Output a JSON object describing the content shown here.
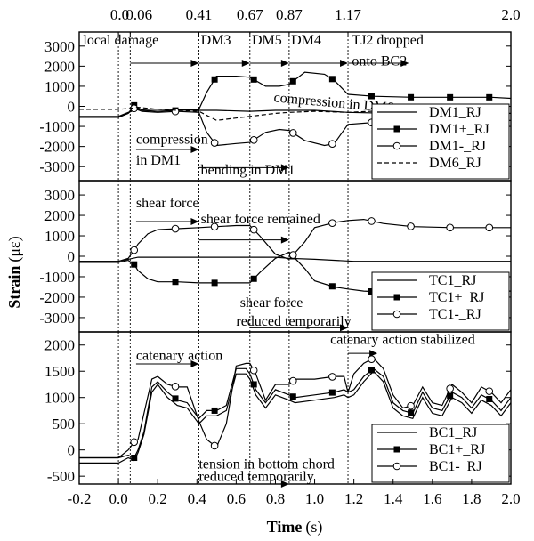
{
  "chart_data": {
    "type": "line",
    "xlabel": "Time",
    "xunit": "(s)",
    "ylabel": "Strain",
    "yunit": "(με)",
    "xlim": [
      -0.2,
      2.0
    ],
    "xticks": [
      "-0.2",
      "0.0",
      "0.2",
      "0.4",
      "0.6",
      "0.8",
      "1.0",
      "1.2",
      "1.4",
      "1.6",
      "1.8",
      "2.0"
    ],
    "top_ticks": [
      {
        "x": 0.0,
        "label": "0.0"
      },
      {
        "x": 0.06,
        "label": "0.06"
      },
      {
        "x": 0.41,
        "label": "0.41"
      },
      {
        "x": 0.67,
        "label": "0.67"
      },
      {
        "x": 0.87,
        "label": "0.87"
      },
      {
        "x": 1.17,
        "label": "1.17"
      },
      {
        "x": 2.0,
        "label": "2.0"
      }
    ],
    "grid": false,
    "panels": [
      {
        "ylim": [
          -3700,
          3700
        ],
        "yticks": [
          3000,
          2000,
          1000,
          0,
          -1000,
          -2000,
          -3000
        ],
        "legend_position": "lower-right",
        "annotations": [
          {
            "text": "local damage",
            "x": -0.18,
            "y": 3080,
            "arrow": [
              0.06,
              0.41,
              2150
            ]
          },
          {
            "text": "DM3",
            "x": 0.42,
            "y": 3080,
            "arrow": [
              0.41,
              0.67,
              2150
            ]
          },
          {
            "text": "DM5",
            "x": 0.68,
            "y": 3080,
            "arrow": [
              0.67,
              0.87,
              2150
            ]
          },
          {
            "text": "DM4",
            "x": 0.88,
            "y": 3080,
            "arrow": [
              0.87,
              1.17,
              2150
            ]
          },
          {
            "text": "TJ2 dropped",
            "x": 1.19,
            "y": 3080,
            "arrow": [
              1.17,
              1.48,
              2150
            ]
          },
          {
            "text": "onto BC2",
            "x": 1.19,
            "y": 2030
          },
          {
            "text": "compression in DM6",
            "x": 0.79,
            "y": 230,
            "rotate": 5
          },
          {
            "text": "compression",
            "x": 0.09,
            "y": -1870
          },
          {
            "text": "in DM1",
            "x": 0.09,
            "y": -2900,
            "arrow": [
              0.09,
              0.41,
              -2150
            ]
          },
          {
            "text": "bending in DM1",
            "x": 0.42,
            "y": -3400,
            "arrow": [
              0.41,
              0.87,
              -3050
            ]
          }
        ],
        "series": [
          {
            "name": "DM1_RJ",
            "style": "solid",
            "marker": "none",
            "x": [
              -0.2,
              0.0,
              0.05,
              0.1,
              0.2,
              0.41,
              0.5,
              0.67,
              0.8,
              0.87,
              1.0,
              1.17,
              1.4,
              1.6,
              2.0
            ],
            "y": [
              -500,
              -500,
              -300,
              -150,
              -150,
              -200,
              -200,
              -250,
              -200,
              -200,
              -200,
              -300,
              -350,
              -350,
              -350
            ]
          },
          {
            "name": "DM1+_RJ",
            "style": "solid",
            "marker": "square",
            "x": [
              -0.2,
              0.0,
              0.05,
              0.08,
              0.12,
              0.2,
              0.3,
              0.41,
              0.45,
              0.5,
              0.6,
              0.67,
              0.75,
              0.82,
              0.87,
              0.95,
              1.05,
              1.1,
              1.17,
              1.3,
              1.5,
              1.7,
              1.9,
              2.0
            ],
            "y": [
              -550,
              -550,
              -350,
              50,
              -200,
              -250,
              -200,
              -150,
              700,
              1500,
              1500,
              1450,
              1000,
              1000,
              1100,
              1700,
              1600,
              1300,
              600,
              500,
              450,
              450,
              450,
              400
            ]
          },
          {
            "name": "DM1-_RJ",
            "style": "solid",
            "marker": "circle",
            "x": [
              -0.2,
              0.0,
              0.05,
              0.08,
              0.12,
              0.2,
              0.3,
              0.41,
              0.45,
              0.5,
              0.6,
              0.67,
              0.75,
              0.82,
              0.87,
              0.95,
              1.05,
              1.1,
              1.17,
              1.3,
              1.5,
              1.7,
              1.9,
              2.0
            ],
            "y": [
              -550,
              -550,
              -350,
              -100,
              -250,
              -300,
              -250,
              -300,
              -1300,
              -1950,
              -1850,
              -1800,
              -1300,
              -1150,
              -1200,
              -1700,
              -1950,
              -1850,
              -900,
              -800,
              -750,
              -750,
              -700,
              -700
            ]
          },
          {
            "name": "DM6_RJ",
            "style": "dashed",
            "marker": "none",
            "x": [
              -0.2,
              0.0,
              0.06,
              0.1,
              0.2,
              0.41,
              0.5,
              0.67,
              0.8,
              0.87,
              1.0,
              1.17,
              1.4,
              1.7,
              2.0
            ],
            "y": [
              -150,
              -150,
              -100,
              -50,
              -150,
              -250,
              -700,
              -500,
              -350,
              -300,
              -250,
              -300,
              -200,
              -200,
              -250
            ]
          }
        ]
      },
      {
        "ylim": [
          -3700,
          3700
        ],
        "yticks": [
          3000,
          2000,
          1000,
          0,
          -1000,
          -2000,
          -3000
        ],
        "legend_position": "lower-right",
        "annotations": [
          {
            "text": "shear force",
            "x": 0.09,
            "y": 2400,
            "arrow": [
              0.09,
              0.41,
              1700
            ]
          },
          {
            "text": "shear force remained",
            "x": 0.42,
            "y": 1600,
            "arrow": [
              0.41,
              0.87,
              800
            ]
          },
          {
            "text": "shear force",
            "x": 0.62,
            "y": -2480
          },
          {
            "text": "reduced temporarily",
            "x": 0.6,
            "y": -3400,
            "arrow": [
              0.67,
              1.17,
              -3500
            ]
          }
        ],
        "series": [
          {
            "name": "TC1_RJ",
            "style": "solid",
            "marker": "none",
            "x": [
              -0.2,
              0.0,
              0.05,
              0.1,
              0.2,
              0.41,
              0.6,
              0.8,
              0.87,
              1.0,
              1.2,
              1.5,
              2.0
            ],
            "y": [
              -250,
              -250,
              -150,
              -50,
              -50,
              -50,
              -50,
              -50,
              -100,
              -150,
              -250,
              -250,
              -250
            ]
          },
          {
            "name": "TC1+_RJ",
            "style": "solid",
            "marker": "square",
            "x": [
              -0.2,
              0.0,
              0.05,
              0.08,
              0.1,
              0.15,
              0.2,
              0.3,
              0.41,
              0.5,
              0.6,
              0.67,
              0.72,
              0.8,
              0.87,
              0.95,
              1.0,
              1.1,
              1.17,
              1.25,
              1.35,
              1.5,
              1.7,
              2.0
            ],
            "y": [
              -300,
              -300,
              -200,
              -400,
              -700,
              -1100,
              -1250,
              -1250,
              -1300,
              -1300,
              -1300,
              -1300,
              -800,
              -100,
              200,
              -600,
              -1200,
              -1500,
              -1600,
              -1700,
              -1750,
              -1700,
              -1700,
              -1700
            ]
          },
          {
            "name": "TC1-_RJ",
            "style": "solid",
            "marker": "circle",
            "x": [
              -0.2,
              0.0,
              0.05,
              0.08,
              0.1,
              0.15,
              0.2,
              0.3,
              0.41,
              0.5,
              0.6,
              0.67,
              0.72,
              0.8,
              0.87,
              0.95,
              1.0,
              1.1,
              1.17,
              1.25,
              1.35,
              1.5,
              1.7,
              2.0
            ],
            "y": [
              -250,
              -250,
              -100,
              300,
              600,
              1100,
              1300,
              1350,
              1400,
              1450,
              1500,
              1500,
              1000,
              100,
              -150,
              700,
              1400,
              1650,
              1750,
              1800,
              1600,
              1450,
              1400,
              1400
            ]
          }
        ]
      },
      {
        "ylim": [
          -650,
          2250
        ],
        "yticks": [
          2000,
          1500,
          1000,
          500,
          0,
          -500
        ],
        "legend_position": "lower-right",
        "annotations": [
          {
            "text": "catenary action",
            "x": 0.09,
            "y": 1720,
            "arrow": [
              0.09,
              0.41,
              1640
            ]
          },
          {
            "text": "catenary action stabilized",
            "x": 1.08,
            "y": 2020,
            "arrow": [
              1.17,
              1.32,
              1840
            ]
          },
          {
            "text": "tension in bottom chord",
            "x": 0.41,
            "y": -350
          },
          {
            "text": "reduced temporarily",
            "x": 0.41,
            "y": -590,
            "arrow": [
              0.41,
              0.87,
              -650
            ]
          }
        ],
        "series": [
          {
            "name": "BC1_RJ",
            "style": "solid",
            "marker": "none",
            "x": [
              -0.2,
              0.0,
              0.05,
              0.08,
              0.1,
              0.13,
              0.17,
              0.2,
              0.25,
              0.3,
              0.35,
              0.41,
              0.45,
              0.5,
              0.55,
              0.6,
              0.65,
              0.67,
              0.7,
              0.75,
              0.8,
              0.87,
              0.9,
              1.0,
              1.1,
              1.15,
              1.17,
              1.2,
              1.25,
              1.3,
              1.35,
              1.4,
              1.45,
              1.5,
              1.55,
              1.6,
              1.65,
              1.7,
              1.75,
              1.8,
              1.85,
              1.9,
              1.95,
              2.0
            ],
            "y": [
              -250,
              -250,
              -150,
              -200,
              -50,
              300,
              1100,
              1250,
              1000,
              850,
              800,
              500,
              650,
              650,
              750,
              1450,
              1450,
              1350,
              1050,
              800,
              1050,
              950,
              900,
              950,
              1000,
              1050,
              1000,
              1050,
              1300,
              1500,
              1300,
              800,
              650,
              600,
              1000,
              700,
              650,
              1000,
              900,
              700,
              950,
              850,
              650,
              900
            ]
          },
          {
            "name": "BC1+_RJ",
            "style": "solid",
            "marker": "square",
            "x": [
              -0.2,
              0.0,
              0.05,
              0.08,
              0.1,
              0.13,
              0.17,
              0.2,
              0.25,
              0.3,
              0.35,
              0.41,
              0.45,
              0.5,
              0.55,
              0.6,
              0.65,
              0.67,
              0.7,
              0.75,
              0.8,
              0.87,
              0.9,
              1.0,
              1.1,
              1.15,
              1.17,
              1.2,
              1.25,
              1.3,
              1.35,
              1.4,
              1.45,
              1.5,
              1.55,
              1.6,
              1.65,
              1.7,
              1.75,
              1.8,
              1.85,
              1.9,
              1.95,
              2.0
            ],
            "y": [
              -150,
              -150,
              -100,
              -150,
              0,
              350,
              1200,
              1300,
              1100,
              950,
              900,
              600,
              750,
              750,
              850,
              1550,
              1550,
              1450,
              1150,
              900,
              1150,
              1050,
              1000,
              1050,
              1100,
              1150,
              1100,
              1150,
              1400,
              1550,
              1400,
              900,
              750,
              700,
              1100,
              800,
              750,
              1100,
              1000,
              800,
              1050,
              950,
              750,
              1000
            ]
          },
          {
            "name": "BC1-_RJ",
            "style": "solid",
            "marker": "circle",
            "x": [
              -0.2,
              0.0,
              0.05,
              0.08,
              0.1,
              0.13,
              0.17,
              0.2,
              0.25,
              0.3,
              0.35,
              0.41,
              0.45,
              0.5,
              0.55,
              0.6,
              0.65,
              0.67,
              0.7,
              0.75,
              0.8,
              0.87,
              0.9,
              1.0,
              1.1,
              1.15,
              1.17,
              1.2,
              1.25,
              1.3,
              1.35,
              1.4,
              1.45,
              1.5,
              1.55,
              1.6,
              1.65,
              1.7,
              1.75,
              1.8,
              1.85,
              1.9,
              1.95,
              2.0
            ],
            "y": [
              -150,
              -150,
              0,
              150,
              200,
              700,
              1350,
              1400,
              1250,
              1200,
              1200,
              550,
              200,
              50,
              500,
              1600,
              1650,
              1650,
              1450,
              950,
              1250,
              1250,
              1350,
              1350,
              1400,
              1400,
              1100,
              1450,
              1650,
              1750,
              1550,
              1050,
              800,
              850,
              1200,
              900,
              850,
              1250,
              1100,
              900,
              1200,
              1100,
              900,
              1150
            ]
          }
        ]
      }
    ]
  }
}
